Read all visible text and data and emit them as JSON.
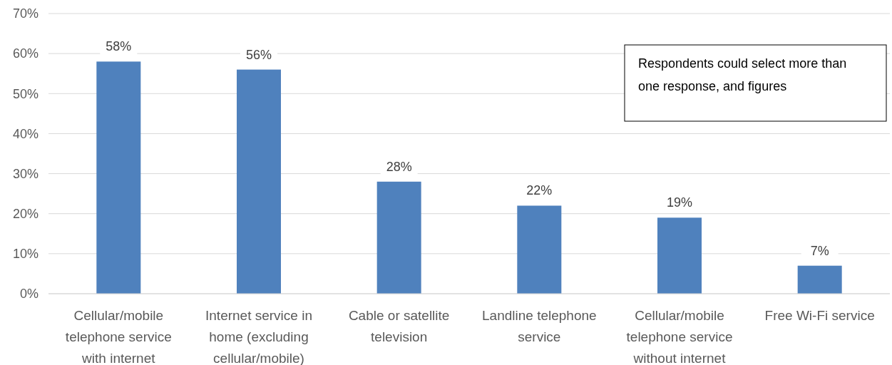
{
  "chart_data": {
    "type": "bar",
    "categories": [
      "Cellular/mobile telephone service with internet",
      "Internet service in home (excluding cellular/mobile)",
      "Cable or satellite television",
      "Landline telephone service",
      "Cellular/mobile telephone service without internet",
      "Free Wi-Fi service"
    ],
    "values": [
      58,
      56,
      28,
      22,
      19,
      7
    ],
    "value_labels": [
      "58%",
      "56%",
      "28%",
      "22%",
      "19%",
      "7%"
    ],
    "color": "#4f81bd",
    "ylim": [
      0,
      70
    ],
    "yticks": [
      {
        "value": 0,
        "label": "0%"
      },
      {
        "value": 10,
        "label": "10%"
      },
      {
        "value": 20,
        "label": "20%"
      },
      {
        "value": 30,
        "label": "30%"
      },
      {
        "value": 40,
        "label": "40%"
      },
      {
        "value": 50,
        "label": "50%"
      },
      {
        "value": 60,
        "label": "60%"
      },
      {
        "value": 70,
        "label": "70%"
      }
    ],
    "grid": "y",
    "annotations": [
      "Respondents could select more than one response, and figures"
    ]
  }
}
